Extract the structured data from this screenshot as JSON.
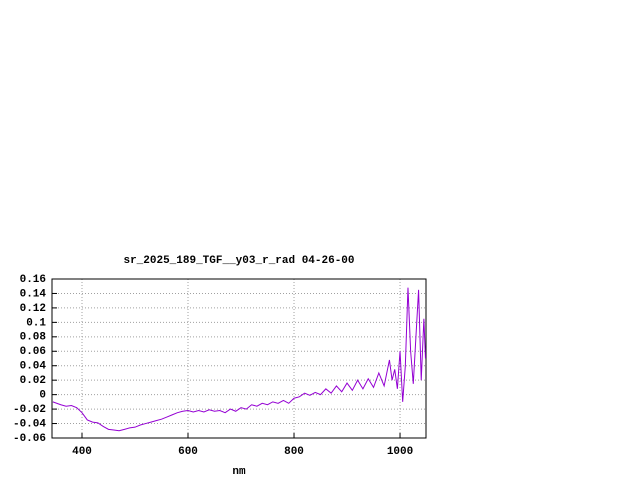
{
  "chart_data": {
    "type": "line",
    "title": "sr_2025_189_TGF__y03_r_rad 04-26-00",
    "x_label": "nm",
    "x": [
      345,
      360,
      370,
      380,
      390,
      400,
      410,
      420,
      430,
      440,
      450,
      460,
      470,
      480,
      490,
      500,
      510,
      520,
      530,
      540,
      550,
      560,
      570,
      580,
      590,
      600,
      610,
      620,
      630,
      640,
      650,
      660,
      670,
      680,
      690,
      700,
      710,
      720,
      730,
      740,
      750,
      760,
      770,
      780,
      790,
      800,
      810,
      820,
      830,
      840,
      850,
      860,
      870,
      880,
      890,
      900,
      910,
      920,
      930,
      940,
      950,
      960,
      970,
      980,
      985,
      990,
      995,
      1000,
      1005,
      1010,
      1015,
      1020,
      1025,
      1030,
      1035,
      1040,
      1045,
      1048
    ],
    "series": [
      {
        "color": "#9400d3",
        "values": [
          -0.01,
          -0.014,
          -0.016,
          -0.015,
          -0.018,
          -0.025,
          -0.035,
          -0.038,
          -0.039,
          -0.044,
          -0.048,
          -0.049,
          -0.05,
          -0.048,
          -0.046,
          -0.045,
          -0.042,
          -0.04,
          -0.038,
          -0.036,
          -0.034,
          -0.031,
          -0.028,
          -0.025,
          -0.023,
          -0.022,
          -0.024,
          -0.022,
          -0.024,
          -0.021,
          -0.023,
          -0.022,
          -0.025,
          -0.02,
          -0.023,
          -0.018,
          -0.02,
          -0.014,
          -0.016,
          -0.012,
          -0.014,
          -0.01,
          -0.012,
          -0.008,
          -0.012,
          -0.005,
          -0.003,
          0.002,
          -0.001,
          0.003,
          0.0,
          0.008,
          0.002,
          0.012,
          0.004,
          0.016,
          0.006,
          0.02,
          0.008,
          0.022,
          0.01,
          0.03,
          0.012,
          0.048,
          0.02,
          0.035,
          0.008,
          0.06,
          -0.01,
          0.04,
          0.148,
          0.06,
          0.015,
          0.08,
          0.145,
          0.02,
          0.105,
          0.05
        ]
      }
    ],
    "xlim": [
      343.4,
      1049
    ],
    "ylim": [
      -0.06,
      0.16
    ],
    "xticks": [
      400,
      600,
      800,
      1000
    ],
    "yticks": [
      -0.06,
      -0.04,
      -0.02,
      0,
      0.02,
      0.04,
      0.06,
      0.08,
      0.1,
      0.12,
      0.14,
      0.16
    ],
    "grid": true
  }
}
